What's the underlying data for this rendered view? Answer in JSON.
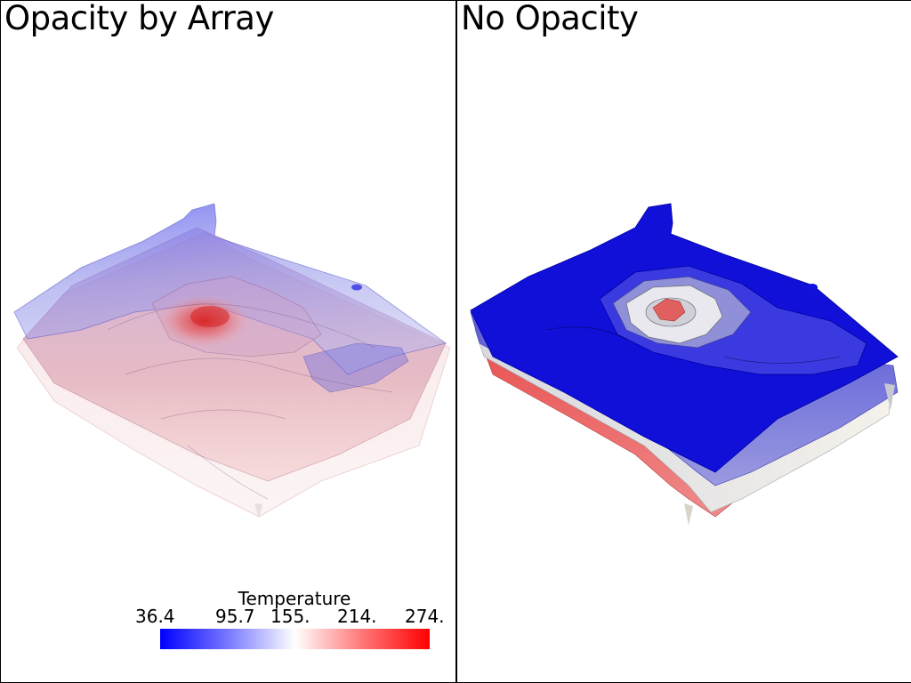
{
  "viewports": {
    "left": {
      "title": "Opacity by Array"
    },
    "right": {
      "title": "No Opacity"
    }
  },
  "scalar_bar": {
    "title": "Temperature",
    "labels": [
      "36.4",
      "95.7",
      "155.",
      "214.",
      "274."
    ],
    "colors": {
      "low": "#0000ff",
      "mid": "#ffffff",
      "high": "#ff0000"
    }
  }
}
